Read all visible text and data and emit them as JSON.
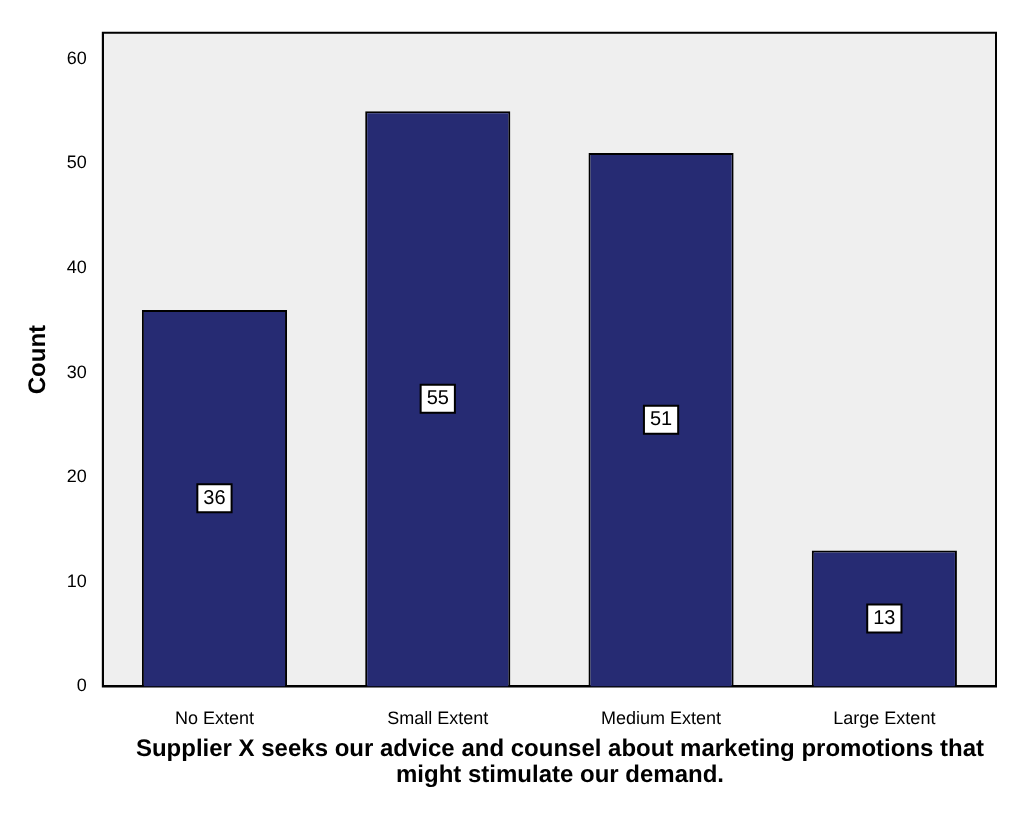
{
  "chart_data": {
    "type": "bar",
    "xlabel": "Supplier X seeks our advice and counsel about marketing promotions that might stimulate our demand.",
    "ylabel": "Count",
    "categories": [
      "No Extent",
      "Small Extent",
      "Medium Extent",
      "Large Extent"
    ],
    "values": [
      36,
      55,
      51,
      13
    ],
    "color": "#262b73",
    "ylim": [
      0,
      62.5
    ],
    "yticks": [
      0,
      10,
      20,
      30,
      40,
      50,
      60
    ],
    "grid": false,
    "legend": false,
    "data_labels": true
  }
}
